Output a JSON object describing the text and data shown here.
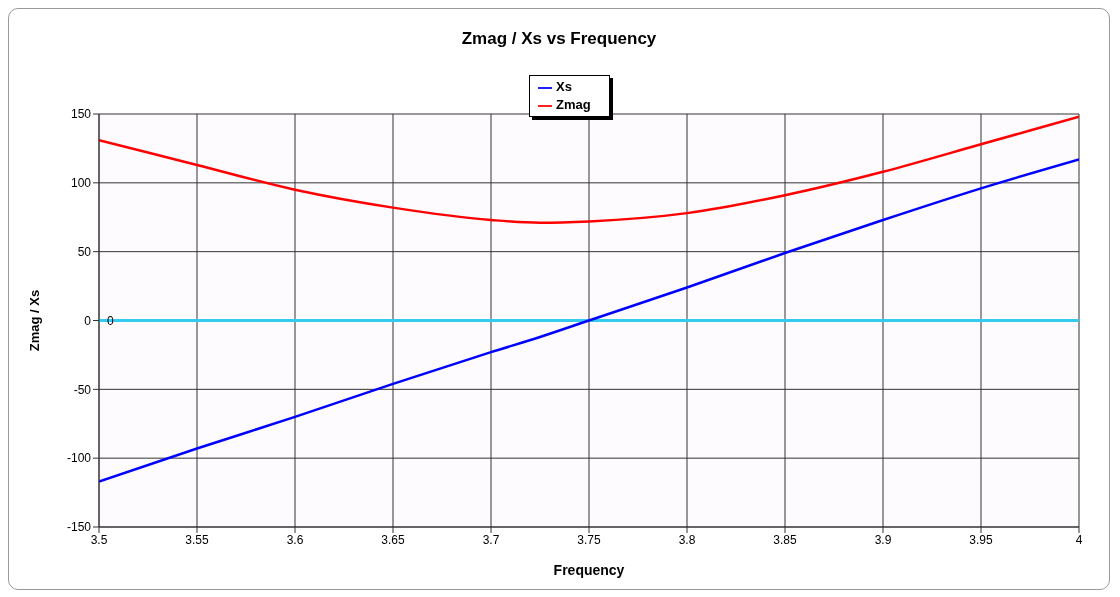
{
  "chart_data": {
    "type": "line",
    "title": "Zmag / Xs vs Frequency",
    "xlabel": "Frequency",
    "ylabel": "Zmag / Xs",
    "x": [
      3.5,
      3.55,
      3.6,
      3.65,
      3.7,
      3.725,
      3.75,
      3.8,
      3.85,
      3.9,
      3.95,
      4
    ],
    "series": [
      {
        "name": "Zmag",
        "color": "#ff0000",
        "values": [
          131,
          113,
          95,
          82,
          73,
          71,
          72,
          78,
          91,
          108,
          128,
          148
        ]
      },
      {
        "name": "Xs",
        "color": "#0000ff",
        "values": [
          -117,
          -93,
          -70,
          -46,
          -23,
          -12,
          0,
          24,
          49,
          73,
          96,
          117
        ]
      }
    ],
    "xlim": [
      3.5,
      4
    ],
    "xticks": [
      3.5,
      3.55,
      3.6,
      3.65,
      3.7,
      3.75,
      3.8,
      3.85,
      3.9,
      3.95,
      4
    ],
    "ylim": [
      -150,
      150
    ],
    "yticks": [
      -150,
      -100,
      -50,
      0,
      50,
      100,
      150
    ],
    "ref_lines": [
      {
        "axis": "y",
        "value": 0,
        "label": "0",
        "color": "#33ccee"
      }
    ],
    "grid": true,
    "legend": "top",
    "marker": "none",
    "line_style": "solid"
  }
}
